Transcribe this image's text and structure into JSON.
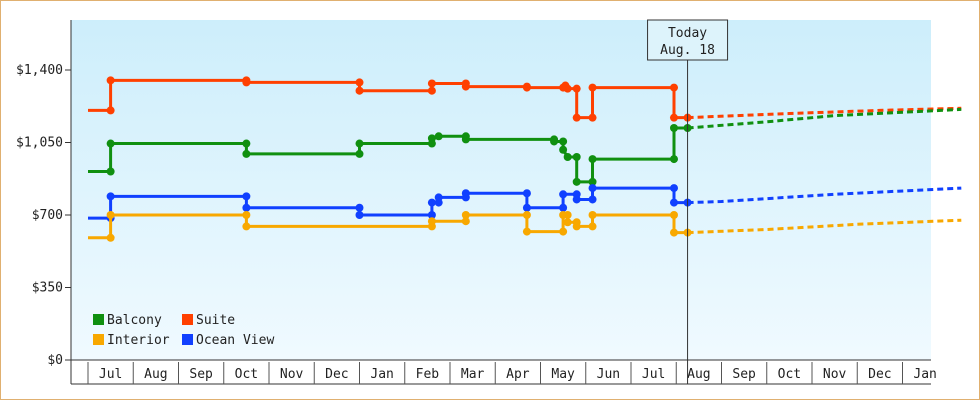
{
  "chart_data": {
    "type": "line",
    "style": "step",
    "y_ticks": [
      "$0",
      "$350",
      "$700",
      "$1,050",
      "$1,400"
    ],
    "ylim": [
      0,
      1400
    ],
    "x_months": [
      "Jul",
      "Aug",
      "Sep",
      "Oct",
      "Nov",
      "Dec",
      "Jan",
      "Feb",
      "Mar",
      "Apr",
      "May",
      "Jun",
      "Jul",
      "Aug",
      "Sep",
      "Oct",
      "Nov",
      "Dec",
      "Jan"
    ],
    "today": {
      "line1": "Today",
      "line2": "Aug. 18"
    },
    "legend": [
      "Balcony",
      "Suite",
      "Interior",
      "Ocean View"
    ],
    "series": [
      {
        "name": "Suite",
        "color": "#ff4000",
        "points": [
          [
            -0.5,
            1205
          ],
          [
            0.0,
            1205
          ],
          [
            0.0,
            1350
          ],
          [
            3.0,
            1350
          ],
          [
            3.0,
            1340
          ],
          [
            5.5,
            1340
          ],
          [
            5.5,
            1300
          ],
          [
            7.1,
            1300
          ],
          [
            7.1,
            1335
          ],
          [
            7.85,
            1335
          ],
          [
            7.85,
            1320
          ],
          [
            9.2,
            1320
          ],
          [
            9.2,
            1315
          ],
          [
            10.0,
            1315
          ],
          [
            10.05,
            1325
          ],
          [
            10.1,
            1310
          ],
          [
            10.3,
            1310
          ],
          [
            10.3,
            1170
          ],
          [
            10.65,
            1170
          ],
          [
            10.65,
            1315
          ],
          [
            12.45,
            1315
          ],
          [
            12.45,
            1170
          ],
          [
            12.75,
            1170
          ]
        ],
        "projection": [
          [
            12.75,
            1170
          ],
          [
            15.0,
            1190
          ],
          [
            17.0,
            1205
          ],
          [
            18.8,
            1215
          ]
        ]
      },
      {
        "name": "Balcony",
        "color": "#109010",
        "points": [
          [
            -0.5,
            910
          ],
          [
            0.0,
            910
          ],
          [
            0.0,
            1045
          ],
          [
            3.0,
            1045
          ],
          [
            3.0,
            995
          ],
          [
            5.5,
            995
          ],
          [
            5.5,
            1045
          ],
          [
            7.1,
            1045
          ],
          [
            7.1,
            1070
          ],
          [
            7.25,
            1080
          ],
          [
            7.85,
            1080
          ],
          [
            7.85,
            1065
          ],
          [
            9.8,
            1065
          ],
          [
            9.8,
            1055
          ],
          [
            10.0,
            1055
          ],
          [
            10.0,
            1015
          ],
          [
            10.1,
            980
          ],
          [
            10.3,
            980
          ],
          [
            10.3,
            860
          ],
          [
            10.65,
            860
          ],
          [
            10.65,
            970
          ],
          [
            12.45,
            970
          ],
          [
            12.45,
            1120
          ],
          [
            12.75,
            1120
          ]
        ],
        "projection": [
          [
            12.75,
            1120
          ],
          [
            14.5,
            1150
          ],
          [
            16.0,
            1180
          ],
          [
            18.8,
            1210
          ]
        ]
      },
      {
        "name": "Ocean View",
        "color": "#1040ff",
        "points": [
          [
            -0.5,
            685
          ],
          [
            0.0,
            685
          ],
          [
            0.0,
            790
          ],
          [
            3.0,
            790
          ],
          [
            3.0,
            735
          ],
          [
            5.5,
            735
          ],
          [
            5.5,
            700
          ],
          [
            7.1,
            700
          ],
          [
            7.1,
            760
          ],
          [
            7.25,
            760
          ],
          [
            7.25,
            785
          ],
          [
            7.85,
            785
          ],
          [
            7.85,
            805
          ],
          [
            9.2,
            805
          ],
          [
            9.2,
            735
          ],
          [
            10.0,
            735
          ],
          [
            10.0,
            800
          ],
          [
            10.3,
            800
          ],
          [
            10.3,
            775
          ],
          [
            10.65,
            775
          ],
          [
            10.65,
            830
          ],
          [
            12.45,
            830
          ],
          [
            12.45,
            760
          ],
          [
            12.75,
            760
          ]
        ],
        "projection": [
          [
            12.75,
            760
          ],
          [
            13.5,
            765
          ],
          [
            16.0,
            800
          ],
          [
            18.8,
            830
          ]
        ]
      },
      {
        "name": "Interior",
        "color": "#f8a800",
        "points": [
          [
            -0.5,
            590
          ],
          [
            0.0,
            590
          ],
          [
            0.0,
            700
          ],
          [
            3.0,
            700
          ],
          [
            3.0,
            645
          ],
          [
            7.1,
            645
          ],
          [
            7.1,
            670
          ],
          [
            7.85,
            670
          ],
          [
            7.85,
            700
          ],
          [
            9.2,
            700
          ],
          [
            9.2,
            620
          ],
          [
            10.0,
            620
          ],
          [
            10.0,
            700
          ],
          [
            10.1,
            700
          ],
          [
            10.1,
            665
          ],
          [
            10.3,
            665
          ],
          [
            10.3,
            645
          ],
          [
            10.65,
            645
          ],
          [
            10.65,
            700
          ],
          [
            12.45,
            700
          ],
          [
            12.45,
            615
          ],
          [
            12.75,
            615
          ]
        ],
        "projection": [
          [
            12.75,
            615
          ],
          [
            14.5,
            630
          ],
          [
            16.5,
            655
          ],
          [
            18.8,
            675
          ]
        ]
      }
    ]
  }
}
